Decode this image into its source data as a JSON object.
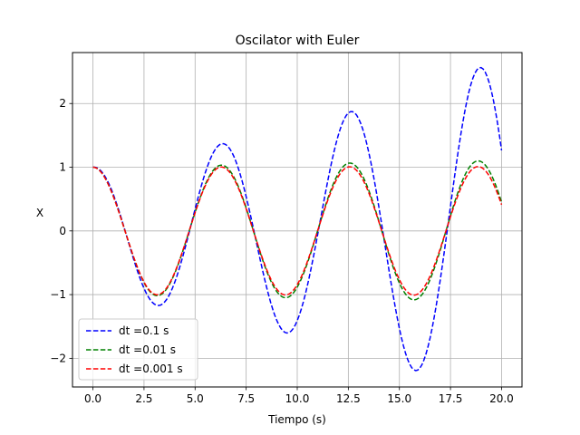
{
  "chart_data": {
    "type": "line",
    "title": "Oscilator with Euler",
    "xlabel": "Tiempo (s)",
    "ylabel": "X",
    "xlim": [
      -1.0,
      21.0
    ],
    "ylim": [
      -2.45,
      2.8
    ],
    "grid": true,
    "legend_position": "lower-left",
    "x_ticks": [
      0.0,
      2.5,
      5.0,
      7.5,
      10.0,
      12.5,
      15.0,
      17.5,
      20.0
    ],
    "x_tick_labels": [
      "0.0",
      "2.5",
      "5.0",
      "7.5",
      "10.0",
      "12.5",
      "15.0",
      "17.5",
      "20.0"
    ],
    "y_ticks": [
      -2,
      -1,
      0,
      1,
      2
    ],
    "y_tick_labels": [
      "−2",
      "−1",
      "0",
      "1",
      "2"
    ],
    "t_max": 20.0,
    "series": [
      {
        "name": "dt =0.1 s",
        "dt": 0.1,
        "color": "#0000ff",
        "style": "dashed"
      },
      {
        "name": "dt =0.01 s",
        "dt": 0.01,
        "color": "#008000",
        "style": "dashed"
      },
      {
        "name": "dt =0.001 s",
        "dt": 0.001,
        "color": "#ff0000",
        "style": "dashed"
      }
    ]
  }
}
